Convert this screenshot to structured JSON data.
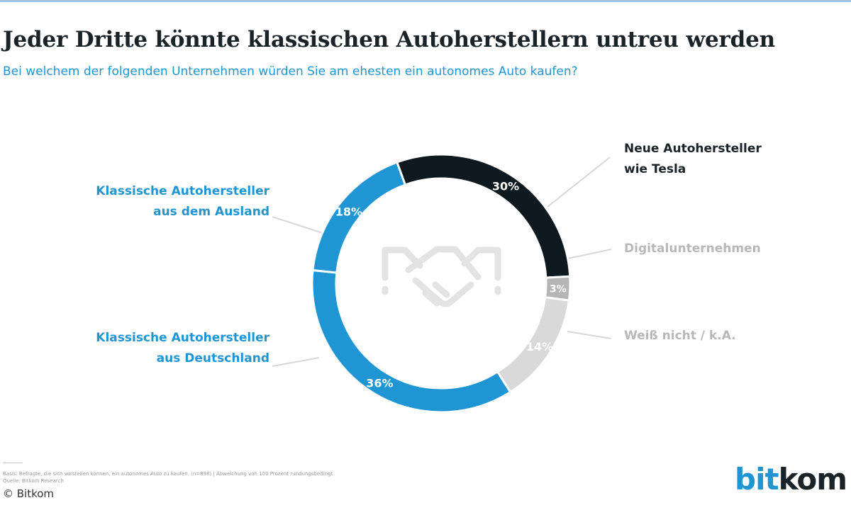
{
  "header": {
    "title": "Jeder Dritte könnte klassischen Autoherstellern untreu werden",
    "subtitle": "Bei welchem der folgenden Unternehmen würden Sie am ehesten ein autonomes Auto kaufen?"
  },
  "chart_data": {
    "type": "pie",
    "style": "donut",
    "title": "Jeder Dritte könnte klassischen Autoherstellern untreu werden",
    "subtitle": "Bei welchem der folgenden Unternehmen würden Sie am ehesten ein autonomes Auto kaufen?",
    "unit": "%",
    "center_icon": "handshake-icon",
    "slices": [
      {
        "label": "Neue Autohersteller wie Tesla",
        "value": 30,
        "data_label": "30%",
        "color": "#0e1a1f",
        "label_color": "#1a2327"
      },
      {
        "label": "Digitalunternehmen",
        "value": 3,
        "data_label": "3%",
        "color": "#b5b5b5",
        "label_color": "#b8b8b8"
      },
      {
        "label": "Weiß nicht / k.A.",
        "value": 14,
        "data_label": "14%",
        "color": "#d9d9d9",
        "label_color": "#b8b8b8"
      },
      {
        "label": "Klassische Autohersteller aus Deutschland",
        "value": 36,
        "data_label": "36%",
        "color": "#1f95d4",
        "label_color": "#1f95d4"
      },
      {
        "label": "Klassische Autohersteller aus dem Ausland",
        "value": 18,
        "data_label": "18%",
        "color": "#1f95d4",
        "label_color": "#1f95d4"
      }
    ]
  },
  "legend": {
    "tesla": [
      "Neue Autohersteller",
      "wie Tesla"
    ],
    "digital": "Digitalunternehmen",
    "unknown": "Weiß nicht / k.A.",
    "ausland": [
      "Klassische Autohersteller",
      "aus dem Ausland"
    ],
    "deutschland": [
      "Klassische Autohersteller",
      "aus Deutschland"
    ]
  },
  "footer": {
    "note_line1": "Basis: Befragte, die sich vorstellen können, ein autonomes Auto zu kaufen. (n=898) | Abweichung von 100 Prozent rundungsbedingt",
    "note_line2": "Quelle: Bitkom Research",
    "copyright": "© Bitkom",
    "logo_a": "bit",
    "logo_b": "kom"
  },
  "colors": {
    "accent": "#1f95d4",
    "dark": "#0e1a1f",
    "grey": "#b5b5b5",
    "light_grey": "#d9d9d9"
  }
}
